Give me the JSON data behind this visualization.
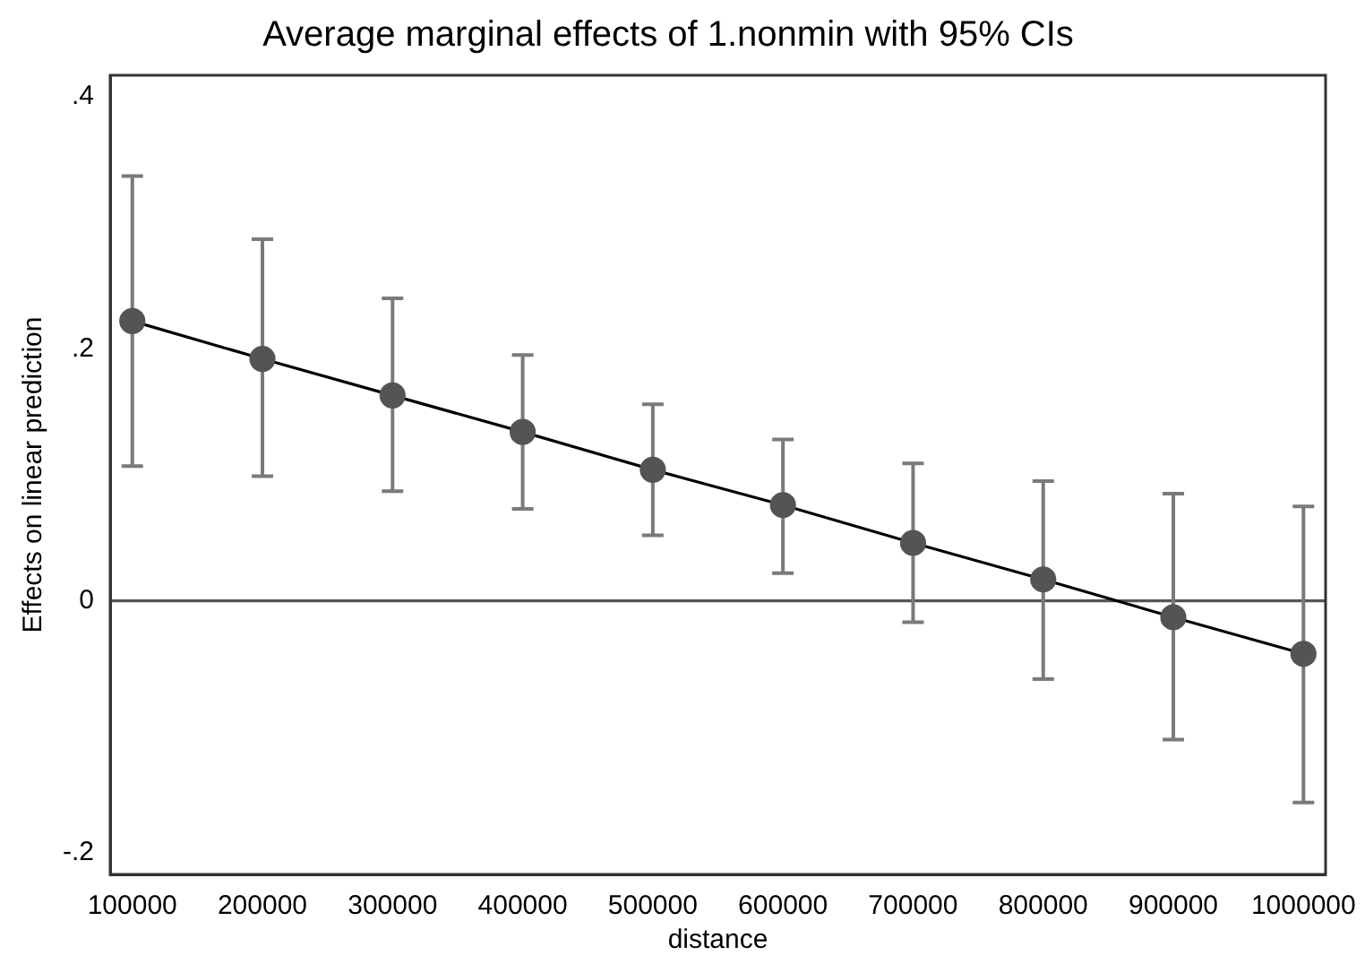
{
  "chart_data": {
    "type": "line",
    "title": "Average marginal effects of 1.nonmin with 95% CIs",
    "xlabel": "distance",
    "ylabel": "Effects on linear prediction",
    "x": [
      100000,
      200000,
      300000,
      400000,
      500000,
      600000,
      700000,
      800000,
      900000,
      1000000
    ],
    "series": [
      {
        "color": "#545454",
        "values": [
          0.222,
          0.192,
          0.163,
          0.134,
          0.104,
          0.076,
          0.046,
          0.017,
          -0.013,
          -0.042
        ],
        "errors": [
          [
            0.107,
            0.337
          ],
          [
            0.099,
            0.287
          ],
          [
            0.087,
            0.24
          ],
          [
            0.073,
            0.195
          ],
          [
            0.052,
            0.156
          ],
          [
            0.022,
            0.128
          ],
          [
            -0.017,
            0.109
          ],
          [
            -0.062,
            0.095
          ],
          [
            -0.11,
            0.085
          ],
          [
            -0.16,
            0.075
          ]
        ]
      }
    ],
    "xlim": [
      83000,
      1017000
    ],
    "ylim": [
      -0.217,
      0.417
    ],
    "xticks": [
      100000,
      200000,
      300000,
      400000,
      500000,
      600000,
      700000,
      800000,
      900000,
      1000000
    ],
    "yticks": [
      {
        "value": -0.2,
        "label": "-.2"
      },
      {
        "value": 0,
        "label": "0"
      },
      {
        "value": 0.2,
        "label": ".2"
      },
      {
        "value": 0.4,
        "label": ".4"
      }
    ],
    "ref_lines": [
      {
        "axis": "y",
        "value": 0,
        "color": "#555555"
      }
    ],
    "grid": false,
    "legend": false,
    "marker": "circle",
    "line_style": "solid"
  }
}
